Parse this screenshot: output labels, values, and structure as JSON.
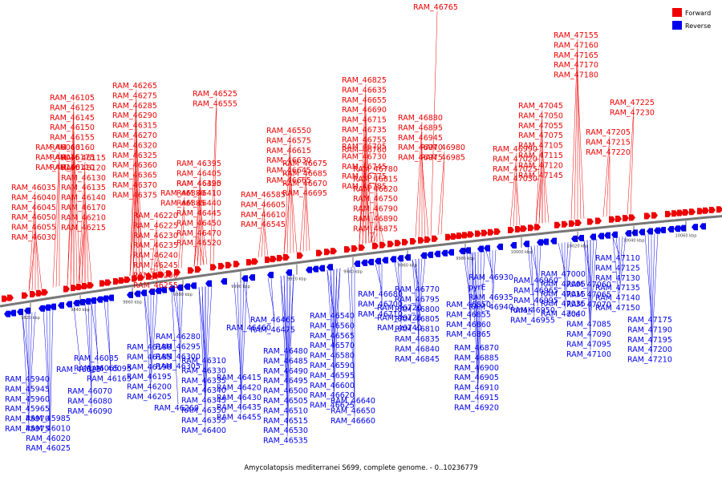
{
  "title": "Amycolatopsis mediterranei S699, complete genome. - 0..10236779",
  "legend": [
    {
      "label": "Forward",
      "color": "#ee0000"
    },
    {
      "label": "Reverse",
      "color": "#0000ee"
    }
  ],
  "colors": {
    "forward": "#ee0000",
    "reverse": "#0000ee",
    "backbone": "#777777"
  },
  "ticks": [
    "9820 kbp",
    "9840 kbp",
    "9860 kbp",
    "9880 kbp",
    "9900 kbp",
    "9920 kbp",
    "9940 kbp",
    "9960 kbp",
    "9980 kbp",
    "10000 kbp",
    "10020 kbp",
    "10040 kbp",
    "10060 kbp"
  ],
  "forward_genes": [
    "RAM_46030",
    "RAM_46035",
    "RAM_46040",
    "RAM_46045",
    "RAM_46050",
    "RAM_46055",
    "RAM_46060",
    "RAM_46075",
    "RAM_46100",
    "RAM_46105",
    "RAM_46125",
    "RAM_46145",
    "RAM_46150",
    "RAM_46155",
    "RAM_46160",
    "RAM_46175",
    "RAM_46110",
    "RAM_46115",
    "RAM_46120",
    "RAM_46130",
    "RAM_46135",
    "RAM_46140",
    "RAM_46170",
    "RAM_46210",
    "RAM_46215",
    "RAM_46220",
    "RAM_46225",
    "RAM_46230",
    "RAM_46235",
    "RAM_46240",
    "RAM_46245",
    "RAM_46250",
    "RAM_46255",
    "RAM_46265",
    "RAM_46275",
    "RAM_46285",
    "RAM_46290",
    "RAM_46315",
    "RAM_46270",
    "RAM_46320",
    "RAM_46325",
    "RAM_46360",
    "RAM_46365",
    "RAM_46370",
    "RAM_46375",
    "RAM_46380",
    "RAM_46385",
    "RAM_46390",
    "RAM_46395",
    "RAM_46405",
    "RAM_46425",
    "RAM_46410",
    "RAM_46440",
    "RAM_46445",
    "RAM_46450",
    "RAM_46470",
    "RAM_46520",
    "RAM_46525",
    "RAM_46555",
    "RAM_46585",
    "RAM_46605",
    "RAM_46610",
    "RAM_46545",
    "RAM_46550",
    "RAM_46575",
    "RAM_46615",
    "RAM_46630",
    "RAM_46645",
    "RAM_46665",
    "RAM_46675",
    "RAM_46685",
    "RAM_46670",
    "RAM_46695",
    "RAM_46705",
    "RAM_46730",
    "RAM_46745",
    "RAM_46775",
    "RAM_46785",
    "RAM_46825",
    "RAM_46635",
    "RAM_46655",
    "RAM_46690",
    "RAM_46715",
    "RAM_46735",
    "RAM_46755",
    "RAM_46760",
    "RAM_46765",
    "RAM_46780",
    "RAM_46815",
    "RAM_46820",
    "RAM_46750",
    "RAM_46790",
    "RAM_46890",
    "RAM_46875",
    "RAM_46880",
    "RAM_46895",
    "RAM_46945",
    "RAM_46970",
    "RAM_46975",
    "RAM_46980",
    "RAM_46985",
    "RAM_46990",
    "RAM_47020",
    "RAM_47025",
    "RAM_47030",
    "RAM_47045",
    "RAM_47050",
    "RAM_47055",
    "RAM_47075",
    "RAM_47105",
    "RAM_47115",
    "RAM_47120",
    "RAM_47145",
    "RAM_47155",
    "RAM_47160",
    "RAM_47165",
    "RAM_47170",
    "RAM_47180",
    "RAM_47205",
    "RAM_47215",
    "RAM_47220",
    "RAM_47225",
    "RAM_47230"
  ],
  "reverse_genes": [
    "RAM_45940",
    "RAM_45945",
    "RAM_45960",
    "RAM_45965",
    "RAM_45970",
    "RAM_45975",
    "RAM_45985",
    "RAM_46010",
    "RAM_46020",
    "RAM_46025",
    "RAM_46015",
    "RAM_46085",
    "RAM_46065",
    "RAM_46070",
    "RAM_46080",
    "RAM_46090",
    "RAM_46095",
    "RAM_46165",
    "RAM_46180",
    "RAM_46185",
    "RAM_46190",
    "RAM_46195",
    "RAM_46200",
    "RAM_46205",
    "RAM_46260",
    "RAM_46280",
    "RAM_46295",
    "RAM_46300",
    "RAM_46305",
    "RAM_46310",
    "RAM_46330",
    "RAM_46335",
    "RAM_46340",
    "RAM_46345",
    "RAM_46350",
    "RAM_46355",
    "RAM_46400",
    "RAM_46415",
    "RAM_46420",
    "RAM_46430",
    "RAM_46435",
    "RAM_46455",
    "RAM_46460",
    "RAM_46465",
    "RAM_46475",
    "RAM_46480",
    "RAM_46485",
    "RAM_46490",
    "RAM_46495",
    "RAM_46500",
    "RAM_46505",
    "RAM_46510",
    "RAM_46515",
    "RAM_46530",
    "RAM_46535",
    "RAM_46540",
    "RAM_46560",
    "RAM_46565",
    "RAM_46570",
    "RAM_46580",
    "RAM_46590",
    "RAM_46595",
    "RAM_46600",
    "RAM_46620",
    "RAM_46625",
    "RAM_46640",
    "RAM_46650",
    "RAM_46660",
    "RAM_46680",
    "RAM_46700",
    "RAM_46710",
    "RAM_46720",
    "RAM_46725",
    "RAM_46740",
    "RAM_46770",
    "RAM_46795",
    "RAM_46800",
    "RAM_46805",
    "RAM_46810",
    "RAM_46835",
    "RAM_46840",
    "RAM_46845",
    "RAM_46850",
    "RAM_46855",
    "RAM_46860",
    "RAM_46865",
    "RAM_46870",
    "RAM_46885",
    "RAM_46900",
    "RAM_46905",
    "RAM_46910",
    "RAM_46915",
    "RAM_46920",
    "RAM_46930",
    "pyrE",
    "RAM_46935",
    "RAM_46940",
    "RAM_46950",
    "RAM_46955",
    "RAM_46960",
    "RAM_46965",
    "RAM_46995",
    "dnaK",
    "RAM_47000",
    "RAM_47005",
    "RAM_47015",
    "RAM_47035",
    "RAM_47040",
    "RAM_47060",
    "RAM_47065",
    "RAM_47070",
    "dcd",
    "RAM_47085",
    "RAM_47090",
    "RAM_47095",
    "RAM_47100",
    "RAM_47110",
    "RAM_47125",
    "RAM_47130",
    "RAM_47135",
    "RAM_47140",
    "RAM_47150",
    "RAM_47175",
    "RAM_47190",
    "RAM_47195",
    "RAM_47200",
    "RAM_47210"
  ]
}
